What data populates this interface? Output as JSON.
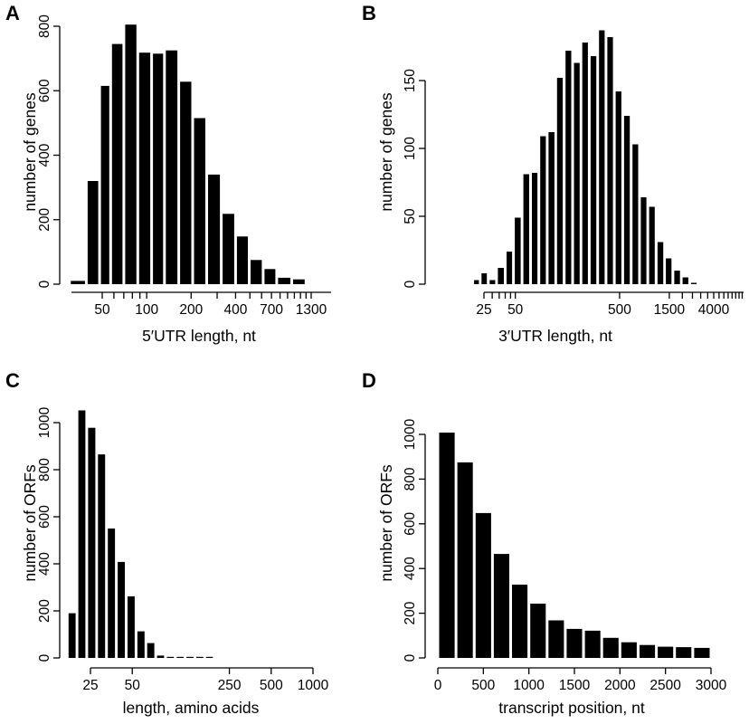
{
  "chart_data": [
    {
      "panel": "A",
      "type": "bar",
      "xlabel": "5′UTR length, nt",
      "ylabel": "number of genes",
      "x_scale": "log",
      "ylim": [
        0,
        800
      ],
      "y_ticks": [
        0,
        200,
        400,
        600,
        800
      ],
      "x_ticks": [
        50,
        100,
        200,
        400,
        700,
        1300
      ],
      "x_minor_ticks": [
        60,
        70,
        80,
        90,
        300,
        500,
        600,
        800,
        900,
        1000,
        1100,
        1200
      ],
      "bars": [
        {
          "x_lo": 30,
          "x_hi": 39,
          "value": 10
        },
        {
          "x_lo": 39,
          "x_hi": 48,
          "value": 320
        },
        {
          "x_lo": 48,
          "x_hi": 57,
          "value": 615
        },
        {
          "x_lo": 57,
          "x_hi": 70,
          "value": 745
        },
        {
          "x_lo": 70,
          "x_hi": 87,
          "value": 805
        },
        {
          "x_lo": 87,
          "x_hi": 108,
          "value": 718
        },
        {
          "x_lo": 108,
          "x_hi": 132,
          "value": 715
        },
        {
          "x_lo": 132,
          "x_hi": 165,
          "value": 725
        },
        {
          "x_lo": 165,
          "x_hi": 205,
          "value": 628
        },
        {
          "x_lo": 205,
          "x_hi": 255,
          "value": 515
        },
        {
          "x_lo": 255,
          "x_hi": 320,
          "value": 340
        },
        {
          "x_lo": 320,
          "x_hi": 400,
          "value": 218
        },
        {
          "x_lo": 400,
          "x_hi": 495,
          "value": 148
        },
        {
          "x_lo": 495,
          "x_hi": 615,
          "value": 75
        },
        {
          "x_lo": 615,
          "x_hi": 760,
          "value": 47
        },
        {
          "x_lo": 760,
          "x_hi": 960,
          "value": 20
        },
        {
          "x_lo": 960,
          "x_hi": 1200,
          "value": 15
        }
      ]
    },
    {
      "panel": "B",
      "type": "bar",
      "xlabel": "3′UTR length, nt",
      "ylabel": "number of genes",
      "x_scale": "log",
      "ylim": [
        0,
        190
      ],
      "y_ticks": [
        0,
        50,
        100,
        150
      ],
      "x_ticks": [
        25,
        50,
        500,
        1500,
        4000
      ],
      "x_minor_ticks": [
        30,
        35,
        40,
        45,
        2000,
        2500,
        3000,
        3500,
        4500,
        5000,
        5500,
        6000,
        6500,
        7000,
        7500
      ],
      "bars": [
        {
          "x_lo": 19.5,
          "x_hi": 23,
          "value": 3
        },
        {
          "x_lo": 23,
          "x_hi": 27.5,
          "value": 8
        },
        {
          "x_lo": 27.5,
          "x_hi": 33,
          "value": 3
        },
        {
          "x_lo": 33,
          "x_hi": 40,
          "value": 12
        },
        {
          "x_lo": 40,
          "x_hi": 48,
          "value": 24
        },
        {
          "x_lo": 48,
          "x_hi": 58,
          "value": 49
        },
        {
          "x_lo": 58,
          "x_hi": 70,
          "value": 81
        },
        {
          "x_lo": 70,
          "x_hi": 84,
          "value": 82
        },
        {
          "x_lo": 84,
          "x_hi": 101,
          "value": 109
        },
        {
          "x_lo": 101,
          "x_hi": 122,
          "value": 112
        },
        {
          "x_lo": 122,
          "x_hi": 147,
          "value": 152
        },
        {
          "x_lo": 147,
          "x_hi": 177,
          "value": 172
        },
        {
          "x_lo": 177,
          "x_hi": 213,
          "value": 163
        },
        {
          "x_lo": 213,
          "x_hi": 256,
          "value": 178
        },
        {
          "x_lo": 256,
          "x_hi": 308,
          "value": 168
        },
        {
          "x_lo": 308,
          "x_hi": 370,
          "value": 187
        },
        {
          "x_lo": 370,
          "x_hi": 445,
          "value": 182
        },
        {
          "x_lo": 445,
          "x_hi": 536,
          "value": 142
        },
        {
          "x_lo": 536,
          "x_hi": 645,
          "value": 124
        },
        {
          "x_lo": 645,
          "x_hi": 776,
          "value": 103
        },
        {
          "x_lo": 776,
          "x_hi": 933,
          "value": 64
        },
        {
          "x_lo": 933,
          "x_hi": 1122,
          "value": 57
        },
        {
          "x_lo": 1122,
          "x_hi": 1350,
          "value": 31
        },
        {
          "x_lo": 1350,
          "x_hi": 1624,
          "value": 19
        },
        {
          "x_lo": 1624,
          "x_hi": 1954,
          "value": 10
        },
        {
          "x_lo": 1954,
          "x_hi": 2351,
          "value": 5
        },
        {
          "x_lo": 2351,
          "x_hi": 2828,
          "value": 1
        }
      ]
    },
    {
      "panel": "C",
      "type": "bar",
      "xlabel": "length, amino acids",
      "ylabel": "number of ORFs",
      "x_scale": "log",
      "ylim": [
        0,
        1050
      ],
      "y_ticks": [
        0,
        200,
        400,
        600,
        800,
        1000
      ],
      "x_ticks": [
        25,
        50,
        250,
        500,
        1000
      ],
      "bars": [
        {
          "x_lo": 17,
          "x_hi": 20,
          "value": 190
        },
        {
          "x_lo": 20,
          "x_hi": 23.5,
          "value": 1052
        },
        {
          "x_lo": 23.5,
          "x_hi": 27.7,
          "value": 978
        },
        {
          "x_lo": 27.7,
          "x_hi": 32.6,
          "value": 865
        },
        {
          "x_lo": 32.6,
          "x_hi": 38.4,
          "value": 550
        },
        {
          "x_lo": 38.4,
          "x_hi": 45.2,
          "value": 408
        },
        {
          "x_lo": 45.2,
          "x_hi": 53.2,
          "value": 262
        },
        {
          "x_lo": 53.2,
          "x_hi": 62.6,
          "value": 113
        },
        {
          "x_lo": 62.6,
          "x_hi": 73.7,
          "value": 63
        },
        {
          "x_lo": 73.7,
          "x_hi": 86.7,
          "value": 10
        },
        {
          "x_lo": 86.7,
          "x_hi": 102,
          "value": 3
        },
        {
          "x_lo": 102,
          "x_hi": 120,
          "value": 2
        },
        {
          "x_lo": 120,
          "x_hi": 141,
          "value": 1
        },
        {
          "x_lo": 141,
          "x_hi": 166,
          "value": 1
        },
        {
          "x_lo": 166,
          "x_hi": 195,
          "value": 1
        }
      ]
    },
    {
      "panel": "D",
      "type": "bar",
      "xlabel": "transcript position, nt",
      "ylabel": "number of ORFs",
      "x_scale": "linear",
      "xlim": [
        0,
        3000
      ],
      "ylim": [
        0,
        1050
      ],
      "y_ticks": [
        0,
        200,
        400,
        600,
        800,
        1000
      ],
      "x_ticks": [
        0,
        500,
        1000,
        1500,
        2000,
        2500,
        3000
      ],
      "bars": [
        {
          "x_lo": 0,
          "x_hi": 200,
          "value": 1008
        },
        {
          "x_lo": 200,
          "x_hi": 400,
          "value": 875
        },
        {
          "x_lo": 400,
          "x_hi": 600,
          "value": 648
        },
        {
          "x_lo": 600,
          "x_hi": 800,
          "value": 465
        },
        {
          "x_lo": 800,
          "x_hi": 1000,
          "value": 328
        },
        {
          "x_lo": 1000,
          "x_hi": 1200,
          "value": 243
        },
        {
          "x_lo": 1200,
          "x_hi": 1400,
          "value": 168
        },
        {
          "x_lo": 1400,
          "x_hi": 1600,
          "value": 130
        },
        {
          "x_lo": 1600,
          "x_hi": 1800,
          "value": 122
        },
        {
          "x_lo": 1800,
          "x_hi": 2000,
          "value": 90
        },
        {
          "x_lo": 2000,
          "x_hi": 2200,
          "value": 70
        },
        {
          "x_lo": 2200,
          "x_hi": 2400,
          "value": 58
        },
        {
          "x_lo": 2400,
          "x_hi": 2600,
          "value": 50
        },
        {
          "x_lo": 2600,
          "x_hi": 2800,
          "value": 48
        },
        {
          "x_lo": 2800,
          "x_hi": 3000,
          "value": 45
        }
      ]
    }
  ]
}
